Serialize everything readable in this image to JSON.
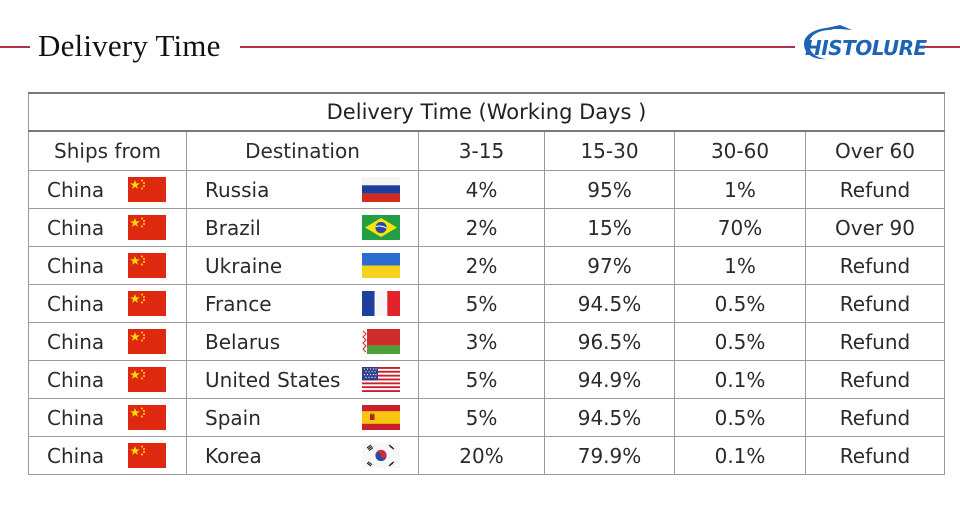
{
  "header": {
    "title": "Delivery Time",
    "logo_text": "HISTOLURE",
    "rule_color": "#b0314a",
    "logo_color": "#1f63b5"
  },
  "table": {
    "caption": "Delivery Time (Working Days )",
    "columns": [
      "Ships from",
      "Destination",
      "3-15",
      "15-30",
      "30-60",
      "Over 60"
    ],
    "rows": [
      {
        "from": "China",
        "from_flag": "china-flag",
        "dest": "Russia",
        "dest_flag": "russia-flag",
        "d3_15": "4%",
        "d15_30": "95%",
        "d30_60": "1%",
        "over": "Refund"
      },
      {
        "from": "China",
        "from_flag": "china-flag",
        "dest": "Brazil",
        "dest_flag": "brazil-flag",
        "d3_15": "2%",
        "d15_30": "15%",
        "d30_60": "70%",
        "over": "Over 90"
      },
      {
        "from": "China",
        "from_flag": "china-flag",
        "dest": "Ukraine",
        "dest_flag": "ukraine-flag",
        "d3_15": "2%",
        "d15_30": "97%",
        "d30_60": "1%",
        "over": "Refund"
      },
      {
        "from": "China",
        "from_flag": "china-flag",
        "dest": "France",
        "dest_flag": "france-flag",
        "d3_15": "5%",
        "d15_30": "94.5%",
        "d30_60": "0.5%",
        "over": "Refund"
      },
      {
        "from": "China",
        "from_flag": "china-flag",
        "dest": "Belarus",
        "dest_flag": "belarus-flag",
        "d3_15": "3%",
        "d15_30": "96.5%",
        "d30_60": "0.5%",
        "over": "Refund"
      },
      {
        "from": "China",
        "from_flag": "china-flag",
        "dest": "United States",
        "dest_flag": "usa-flag",
        "d3_15": "5%",
        "d15_30": "94.9%",
        "d30_60": "0.1%",
        "over": "Refund"
      },
      {
        "from": "China",
        "from_flag": "china-flag",
        "dest": "Spain",
        "dest_flag": "spain-flag",
        "d3_15": "5%",
        "d15_30": "94.5%",
        "d30_60": "0.5%",
        "over": "Refund"
      },
      {
        "from": "China",
        "from_flag": "china-flag",
        "dest": "Korea",
        "dest_flag": "korea-flag",
        "d3_15": "20%",
        "d15_30": "79.9%",
        "d30_60": "0.1%",
        "over": "Refund"
      }
    ]
  }
}
